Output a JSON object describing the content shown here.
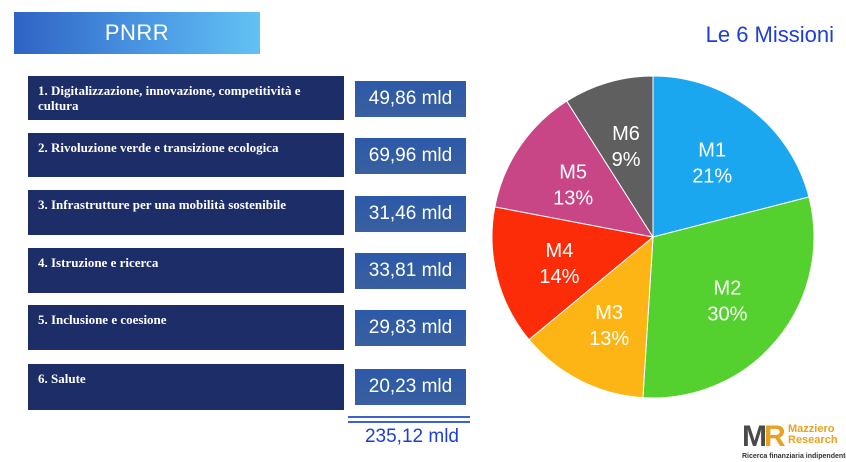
{
  "header": {
    "badge": "PNRR",
    "title": "Le 6 Missioni"
  },
  "missions": [
    {
      "label": "1. Digitalizzazione, innovazione, competitività e cultura",
      "amount": "49,86 mld"
    },
    {
      "label": "2. Rivoluzione verde e transizione ecologica",
      "amount": "69,96 mld"
    },
    {
      "label": "3. Infrastrutture per una mobilità sostenibile",
      "amount": "31,46 mld"
    },
    {
      "label": "4. Istruzione e ricerca",
      "amount": "33,81 mld"
    },
    {
      "label": "5. Inclusione e coesione",
      "amount": "29,83 mld"
    },
    {
      "label": "6. Salute",
      "amount": "20,23 mld"
    }
  ],
  "total": "235,12 mld",
  "chart_data": {
    "type": "pie",
    "slices": [
      {
        "name": "M1",
        "value": 21,
        "label": "21%",
        "color": "#1aa7f0"
      },
      {
        "name": "M2",
        "value": 30,
        "label": "30%",
        "color": "#55d12f"
      },
      {
        "name": "M3",
        "value": 13,
        "label": "13%",
        "color": "#fcb514"
      },
      {
        "name": "M4",
        "value": 14,
        "label": "14%",
        "color": "#fb2c07"
      },
      {
        "name": "M5",
        "value": 13,
        "label": "13%",
        "color": "#c84586"
      },
      {
        "name": "M6",
        "value": 9,
        "label": "9%",
        "color": "#5f5f5f"
      }
    ]
  },
  "logo": {
    "mark_left": "M",
    "mark_right": "R",
    "name_line1": "Mazziero",
    "name_line2": "Research",
    "tagline": "Ricerca finanziaria indipendente"
  },
  "colors": {
    "panel": "#1c2d68",
    "accent": "#1e3fd6",
    "logo_accent": "#e8a21f"
  }
}
